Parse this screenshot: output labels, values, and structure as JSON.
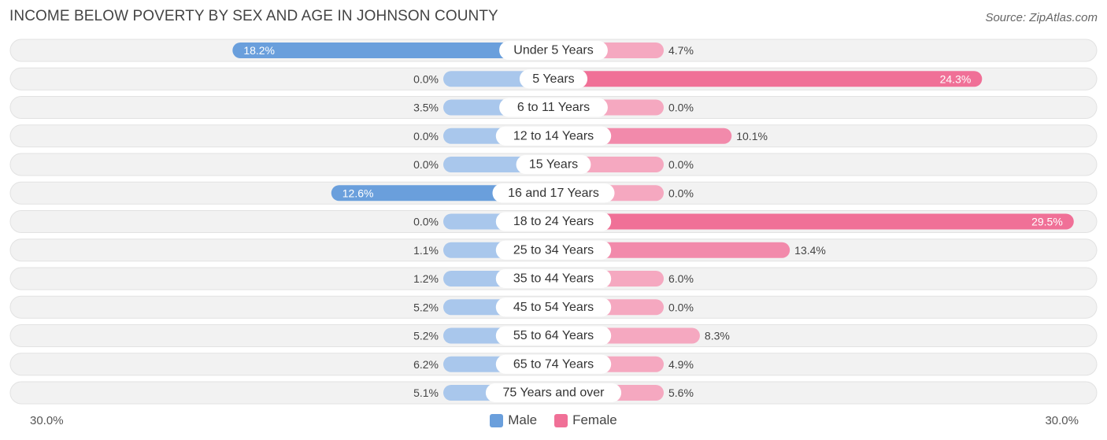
{
  "header": {
    "title": "INCOME BELOW POVERTY BY SEX AND AGE IN JOHNSON COUNTY",
    "source": "Source: ZipAtlas.com"
  },
  "colors": {
    "male_strong": "#6a9fdc",
    "male_light": "#a9c7ec",
    "female_strong": "#f07097",
    "female_light": "#f5a8c0"
  },
  "legend": {
    "male": "Male",
    "female": "Female"
  },
  "axis": {
    "left_label": "30.0%",
    "right_label": "30.0%"
  },
  "chart_data": {
    "type": "bar",
    "orientation": "horizontal-diverging",
    "title": "INCOME BELOW POVERTY BY SEX AND AGE IN JOHNSON COUNTY",
    "categories": [
      "Under 5 Years",
      "5 Years",
      "6 to 11 Years",
      "12 to 14 Years",
      "15 Years",
      "16 and 17 Years",
      "18 to 24 Years",
      "25 to 34 Years",
      "35 to 44 Years",
      "45 to 54 Years",
      "55 to 64 Years",
      "65 to 74 Years",
      "75 Years and over"
    ],
    "series": [
      {
        "name": "Male",
        "values": [
          18.2,
          0.0,
          3.5,
          0.0,
          0.0,
          12.6,
          0.0,
          1.1,
          1.2,
          5.2,
          5.2,
          6.2,
          5.1
        ],
        "labels": [
          "18.2%",
          "0.0%",
          "3.5%",
          "0.0%",
          "0.0%",
          "12.6%",
          "0.0%",
          "1.1%",
          "1.2%",
          "5.2%",
          "5.2%",
          "6.2%",
          "5.1%"
        ]
      },
      {
        "name": "Female",
        "values": [
          4.7,
          24.3,
          0.0,
          10.1,
          0.0,
          0.0,
          29.5,
          13.4,
          6.0,
          0.0,
          8.3,
          4.9,
          5.6
        ],
        "labels": [
          "4.7%",
          "24.3%",
          "0.0%",
          "10.1%",
          "0.0%",
          "0.0%",
          "29.5%",
          "13.4%",
          "6.0%",
          "0.0%",
          "8.3%",
          "4.9%",
          "5.6%"
        ]
      }
    ],
    "xlim": [
      -30,
      30
    ],
    "legend_position": "bottom-center"
  }
}
